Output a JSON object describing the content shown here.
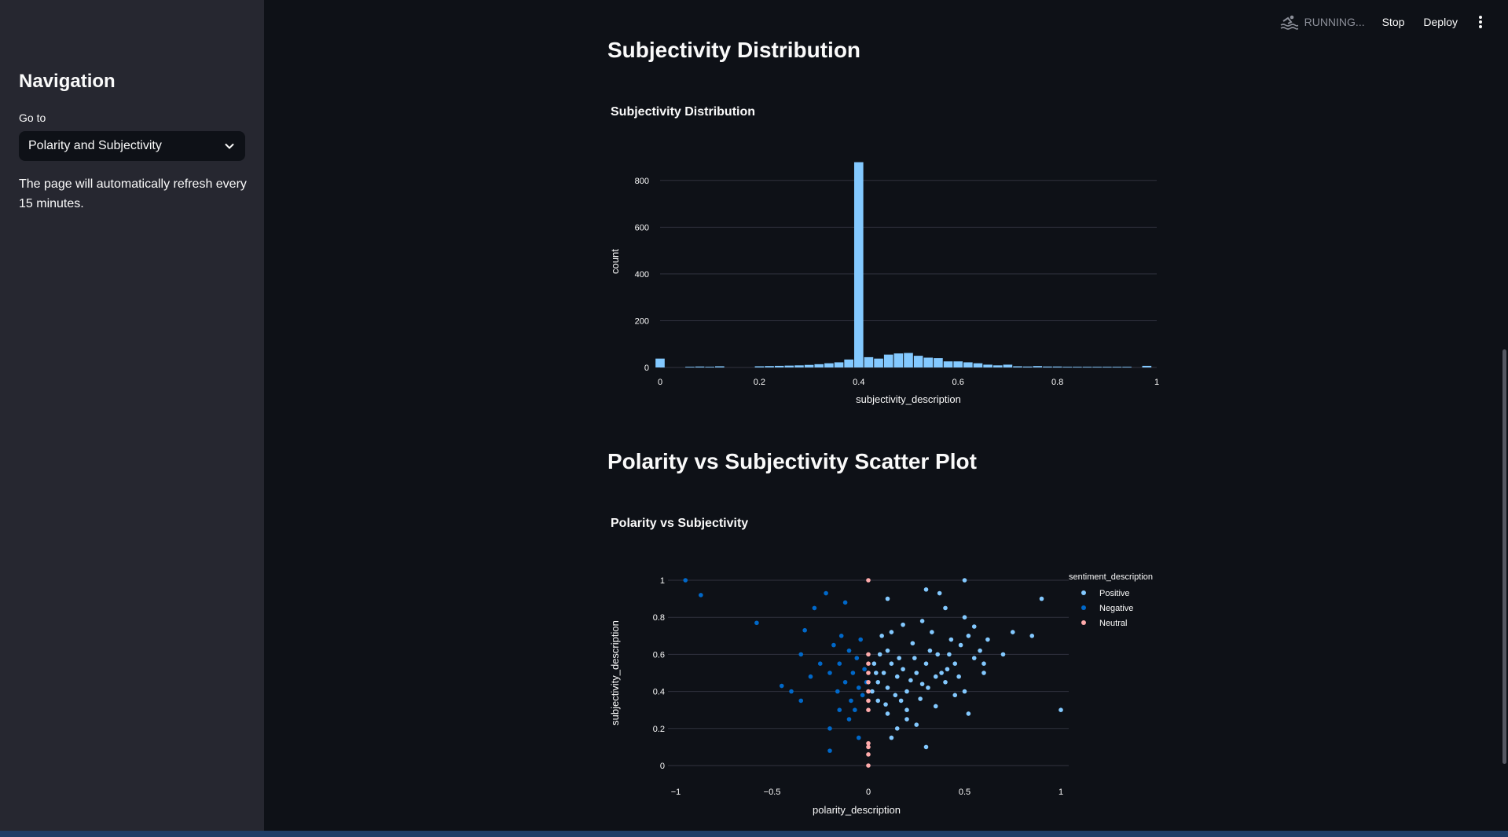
{
  "sidebar": {
    "title": "Navigation",
    "goto_label": "Go to",
    "select_value": "Polarity and Subjectivity",
    "refresh_note": "The page will automatically refresh every 15 minutes."
  },
  "topbar": {
    "status": "RUNNING...",
    "stop_label": "Stop",
    "deploy_label": "Deploy",
    "status_icon": "swimmer-icon",
    "menu_icon": "kebab-menu-icon"
  },
  "sections": {
    "subjectivity_heading": "Subjectivity Distribution",
    "scatter_heading": "Polarity vs Subjectivity Scatter Plot"
  },
  "colors": {
    "background": "#0e1117",
    "sidebar": "#262730",
    "bar": "#83c9ff",
    "positive": "#83c9ff",
    "negative": "#0068c9",
    "neutral": "#ffabab"
  },
  "chart_data": [
    {
      "type": "bar",
      "title": "Subjectivity Distribution",
      "xlabel": "subjectivity_description",
      "ylabel": "count",
      "xlim": [
        0,
        1
      ],
      "ylim": [
        0,
        900
      ],
      "xticks": [
        "0",
        "0.2",
        "0.4",
        "0.6",
        "0.8",
        "1"
      ],
      "yticks": [
        "0",
        "200",
        "400",
        "600",
        "800"
      ],
      "grid": true,
      "bins": [
        {
          "x": 0.0,
          "value": 38
        },
        {
          "x": 0.06,
          "value": 3
        },
        {
          "x": 0.08,
          "value": 4
        },
        {
          "x": 0.1,
          "value": 3
        },
        {
          "x": 0.12,
          "value": 5
        },
        {
          "x": 0.2,
          "value": 5
        },
        {
          "x": 0.22,
          "value": 6
        },
        {
          "x": 0.24,
          "value": 7
        },
        {
          "x": 0.26,
          "value": 8
        },
        {
          "x": 0.28,
          "value": 9
        },
        {
          "x": 0.3,
          "value": 11
        },
        {
          "x": 0.32,
          "value": 14
        },
        {
          "x": 0.34,
          "value": 18
        },
        {
          "x": 0.36,
          "value": 22
        },
        {
          "x": 0.38,
          "value": 34
        },
        {
          "x": 0.4,
          "value": 878
        },
        {
          "x": 0.42,
          "value": 44
        },
        {
          "x": 0.44,
          "value": 38
        },
        {
          "x": 0.46,
          "value": 55
        },
        {
          "x": 0.48,
          "value": 60
        },
        {
          "x": 0.5,
          "value": 62
        },
        {
          "x": 0.52,
          "value": 50
        },
        {
          "x": 0.54,
          "value": 42
        },
        {
          "x": 0.56,
          "value": 40
        },
        {
          "x": 0.58,
          "value": 26
        },
        {
          "x": 0.6,
          "value": 26
        },
        {
          "x": 0.62,
          "value": 22
        },
        {
          "x": 0.64,
          "value": 18
        },
        {
          "x": 0.66,
          "value": 12
        },
        {
          "x": 0.68,
          "value": 9
        },
        {
          "x": 0.7,
          "value": 12
        },
        {
          "x": 0.72,
          "value": 5
        },
        {
          "x": 0.74,
          "value": 4
        },
        {
          "x": 0.76,
          "value": 6
        },
        {
          "x": 0.78,
          "value": 4
        },
        {
          "x": 0.8,
          "value": 4
        },
        {
          "x": 0.82,
          "value": 3
        },
        {
          "x": 0.84,
          "value": 3
        },
        {
          "x": 0.86,
          "value": 3
        },
        {
          "x": 0.88,
          "value": 3
        },
        {
          "x": 0.9,
          "value": 3
        },
        {
          "x": 0.92,
          "value": 3
        },
        {
          "x": 0.94,
          "value": 3
        },
        {
          "x": 0.98,
          "value": 7
        }
      ]
    },
    {
      "type": "scatter",
      "title": "Polarity vs Subjectivity",
      "xlabel": "polarity_description",
      "ylabel": "subjectivity_description",
      "xlim": [
        -1,
        1
      ],
      "ylim": [
        0,
        1
      ],
      "xticks": [
        "−1",
        "−0.5",
        "0",
        "0.5",
        "1"
      ],
      "yticks": [
        "0",
        "0.2",
        "0.4",
        "0.6",
        "0.8",
        "1"
      ],
      "grid": true,
      "legend_title": "sentiment_description",
      "legend_position": "right",
      "series": [
        {
          "name": "Positive",
          "points": [
            [
              0.05,
              0.45
            ],
            [
              0.08,
              0.5
            ],
            [
              0.1,
              0.42
            ],
            [
              0.12,
              0.55
            ],
            [
              0.15,
              0.48
            ],
            [
              0.18,
              0.52
            ],
            [
              0.2,
              0.4
            ],
            [
              0.22,
              0.46
            ],
            [
              0.25,
              0.5
            ],
            [
              0.06,
              0.6
            ],
            [
              0.1,
              0.62
            ],
            [
              0.14,
              0.38
            ],
            [
              0.17,
              0.35
            ],
            [
              0.2,
              0.3
            ],
            [
              0.24,
              0.58
            ],
            [
              0.28,
              0.44
            ],
            [
              0.3,
              0.55
            ],
            [
              0.32,
              0.62
            ],
            [
              0.35,
              0.48
            ],
            [
              0.38,
              0.5
            ],
            [
              0.4,
              0.45
            ],
            [
              0.42,
              0.6
            ],
            [
              0.45,
              0.55
            ],
            [
              0.48,
              0.65
            ],
            [
              0.5,
              0.4
            ],
            [
              0.52,
              0.7
            ],
            [
              0.55,
              0.58
            ],
            [
              0.58,
              0.62
            ],
            [
              0.6,
              0.5
            ],
            [
              0.62,
              0.68
            ],
            [
              0.7,
              0.6
            ],
            [
              0.75,
              0.72
            ],
            [
              0.85,
              0.7
            ],
            [
              0.9,
              0.9
            ],
            [
              0.5,
              1.0
            ],
            [
              0.3,
              0.95
            ],
            [
              0.37,
              0.93
            ],
            [
              0.1,
              0.9
            ],
            [
              0.4,
              0.85
            ],
            [
              0.5,
              0.8
            ],
            [
              0.55,
              0.75
            ],
            [
              0.2,
              0.25
            ],
            [
              0.15,
              0.2
            ],
            [
              0.12,
              0.15
            ],
            [
              0.3,
              0.1
            ],
            [
              0.1,
              0.28
            ],
            [
              0.05,
              0.35
            ],
            [
              0.25,
              0.22
            ],
            [
              0.35,
              0.32
            ],
            [
              0.45,
              0.38
            ],
            [
              1.0,
              0.3
            ],
            [
              0.52,
              0.28
            ],
            [
              0.07,
              0.7
            ],
            [
              0.12,
              0.72
            ],
            [
              0.18,
              0.76
            ],
            [
              0.28,
              0.78
            ],
            [
              0.33,
              0.72
            ],
            [
              0.43,
              0.68
            ],
            [
              0.47,
              0.48
            ],
            [
              0.6,
              0.55
            ],
            [
              0.02,
              0.4
            ],
            [
              0.04,
              0.5
            ],
            [
              0.09,
              0.33
            ],
            [
              0.16,
              0.58
            ],
            [
              0.23,
              0.66
            ],
            [
              0.27,
              0.36
            ],
            [
              0.31,
              0.42
            ],
            [
              0.36,
              0.6
            ],
            [
              0.41,
              0.52
            ],
            [
              0.03,
              0.55
            ]
          ]
        },
        {
          "name": "Negative",
          "points": [
            [
              -0.95,
              1.0
            ],
            [
              -0.87,
              0.92
            ],
            [
              -0.58,
              0.77
            ],
            [
              -0.45,
              0.43
            ],
            [
              -0.4,
              0.4
            ],
            [
              -0.35,
              0.6
            ],
            [
              -0.33,
              0.73
            ],
            [
              -0.28,
              0.85
            ],
            [
              -0.22,
              0.93
            ],
            [
              -0.2,
              0.5
            ],
            [
              -0.18,
              0.65
            ],
            [
              -0.15,
              0.55
            ],
            [
              -0.12,
              0.45
            ],
            [
              -0.1,
              0.62
            ],
            [
              -0.08,
              0.5
            ],
            [
              -0.06,
              0.58
            ],
            [
              -0.05,
              0.42
            ],
            [
              -0.04,
              0.68
            ],
            [
              -0.03,
              0.38
            ],
            [
              -0.02,
              0.52
            ],
            [
              -0.15,
              0.3
            ],
            [
              -0.2,
              0.2
            ],
            [
              -0.2,
              0.08
            ],
            [
              -0.1,
              0.25
            ],
            [
              -0.12,
              0.88
            ],
            [
              -0.25,
              0.55
            ],
            [
              -0.3,
              0.48
            ],
            [
              -0.35,
              0.35
            ],
            [
              -0.05,
              0.15
            ],
            [
              -0.07,
              0.3
            ],
            [
              -0.14,
              0.7
            ],
            [
              -0.16,
              0.4
            ],
            [
              -0.09,
              0.35
            ],
            [
              -0.01,
              0.45
            ]
          ]
        },
        {
          "name": "Neutral",
          "points": [
            [
              0,
              1.0
            ],
            [
              0,
              0.6
            ],
            [
              0,
              0.55
            ],
            [
              0,
              0.5
            ],
            [
              0,
              0.45
            ],
            [
              0,
              0.4
            ],
            [
              0,
              0.35
            ],
            [
              0,
              0.3
            ],
            [
              0,
              0.12
            ],
            [
              0,
              0.1
            ],
            [
              0,
              0.06
            ],
            [
              0,
              0.0
            ]
          ]
        }
      ]
    }
  ]
}
